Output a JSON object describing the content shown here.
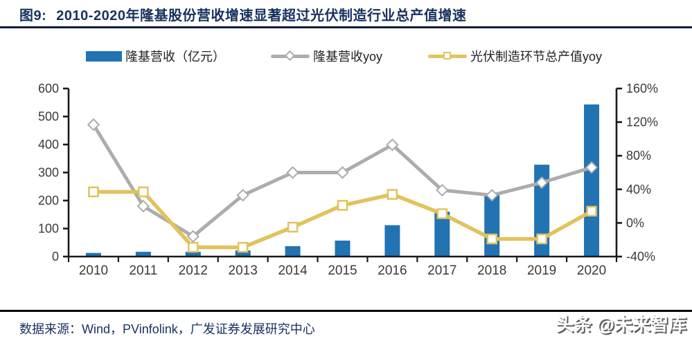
{
  "header": {
    "fig_tag": "图9:",
    "title": "2010-2020年隆基股份营收增速显著超过光伏制造行业总产值增速"
  },
  "colors": {
    "bar_blue": "#2173B2",
    "line_gray": "#ACACAC",
    "line_yellow": "#E2C25D",
    "axis": "#1A1A1A",
    "tick_text": "#3A3A3A",
    "title_navy": "#17315F"
  },
  "chart_data": {
    "type": "bar",
    "subtype": "combo-bar-line",
    "categories": [
      "2010",
      "2011",
      "2012",
      "2013",
      "2014",
      "2015",
      "2016",
      "2017",
      "2018",
      "2019",
      "2020"
    ],
    "series": [
      {
        "name": "隆基营收（亿元）",
        "type": "bar",
        "axis": "left",
        "values": [
          13,
          17,
          17,
          22,
          37,
          57,
          112,
          160,
          220,
          328,
          543
        ]
      },
      {
        "name": "隆基营收yoy",
        "type": "line",
        "marker": "diamond",
        "axis": "right",
        "values_pct": [
          117,
          20,
          -16,
          33,
          60,
          60,
          93,
          39,
          33,
          48,
          66
        ]
      },
      {
        "name": "光伏制造环节总产值yoy",
        "type": "line",
        "marker": "square",
        "axis": "right",
        "values_pct": [
          37,
          37,
          -29,
          -29,
          -5,
          21,
          34,
          11,
          -19,
          -19,
          14
        ]
      }
    ],
    "left_axis": {
      "min": 0,
      "max": 600,
      "ticks": [
        0,
        100,
        200,
        300,
        400,
        500,
        600
      ]
    },
    "right_axis": {
      "min": -40,
      "max": 160,
      "ticks": [
        -40,
        0,
        40,
        80,
        120,
        160
      ],
      "tick_labels": [
        "-40%",
        "0%",
        "40%",
        "80%",
        "120%",
        "160%"
      ]
    },
    "grid": false,
    "legend_position": "top"
  },
  "footer": {
    "source": "数据来源：Wind，PVinfolink，广发证券发展研究中心",
    "watermark": "头条 @未来智库"
  }
}
